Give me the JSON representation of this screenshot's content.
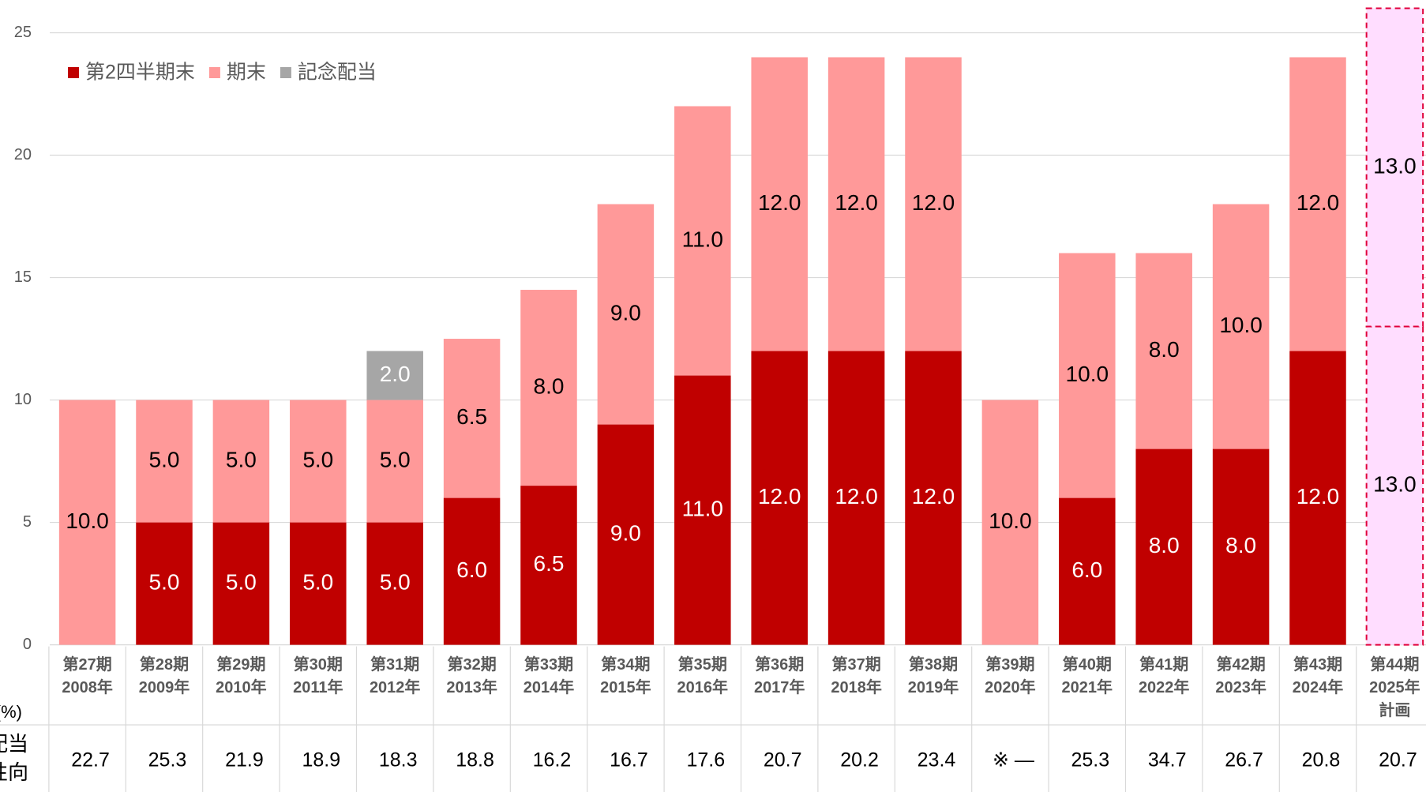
{
  "chart_data": {
    "type": "stacked_bar",
    "categories": [
      "第27期\n2008年",
      "第28期\n2009年",
      "第29期\n2010年",
      "第30期\n2011年",
      "第31期\n2012年",
      "第32期\n2013年",
      "第33期\n2014年",
      "第34期\n2015年",
      "第35期\n2016年",
      "第36期\n2017年",
      "第37期\n2018年",
      "第38期\n2019年",
      "第39期\n2020年",
      "第40期\n2021年",
      "第41期\n2022年",
      "第42期\n2023年",
      "第43期\n2024年",
      "第44期\n2025年\n計画"
    ],
    "series": [
      {
        "name": "第2四半期末",
        "color": "#c00000",
        "label_color": "#ffffff",
        "values": [
          null,
          5,
          5,
          5,
          5,
          6,
          6.5,
          9,
          11,
          12,
          12,
          12,
          null,
          6,
          8,
          8,
          12,
          13
        ],
        "value_labels": [
          null,
          "5.0",
          "5.0",
          "5.0",
          "5.0",
          "6.0",
          "6.5",
          "9.0",
          "11.0",
          "12.0",
          "12.0",
          "12.0",
          null,
          "6.0",
          "8.0",
          "8.0",
          "12.0",
          "13.0"
        ]
      },
      {
        "name": "期末",
        "color": "#ff9999",
        "label_color": "#000000",
        "values": [
          10,
          5,
          5,
          5,
          5,
          6.5,
          8,
          9,
          11,
          12,
          12,
          12,
          10,
          10,
          8,
          10,
          12,
          13
        ],
        "value_labels": [
          "10.0",
          "5.0",
          "5.0",
          "5.0",
          "5.0",
          "6.5",
          "8.0",
          "9.0",
          "11.0",
          "12.0",
          "12.0",
          "12.0",
          "10.0",
          "10.0",
          "8.0",
          "10.0",
          "12.0",
          "13.0"
        ]
      },
      {
        "name": "記念配当",
        "color": "#a6a6a6",
        "label_color": "#ffffff",
        "values": [
          null,
          null,
          null,
          null,
          2,
          null,
          null,
          null,
          null,
          null,
          null,
          null,
          null,
          null,
          null,
          null,
          null,
          null
        ],
        "value_labels": [
          null,
          null,
          null,
          null,
          "2.0",
          null,
          null,
          null,
          null,
          null,
          null,
          null,
          null,
          null,
          null,
          null,
          null,
          null
        ]
      }
    ],
    "plan_style": {
      "index": 17,
      "fill": "#ffddff",
      "stroke": "#e0003a",
      "label_color": "#000000"
    },
    "ylim": [
      0,
      25
    ],
    "yticks": [
      0,
      5,
      10,
      15,
      20,
      25
    ],
    "grid": true,
    "legend": "top-left",
    "payout_ratio": {
      "unit": "(%)",
      "label_lines": [
        "配当",
        "性向"
      ],
      "values": [
        22.7,
        25.3,
        21.9,
        18.9,
        18.3,
        18.8,
        16.2,
        16.7,
        17.6,
        20.7,
        20.2,
        23.4,
        null,
        25.3,
        34.7,
        26.7,
        20.8,
        20.7
      ],
      "value_labels": [
        null,
        null,
        null,
        null,
        null,
        null,
        null,
        null,
        null,
        null,
        null,
        null,
        "※ —",
        null,
        null,
        null,
        null,
        null
      ]
    }
  }
}
